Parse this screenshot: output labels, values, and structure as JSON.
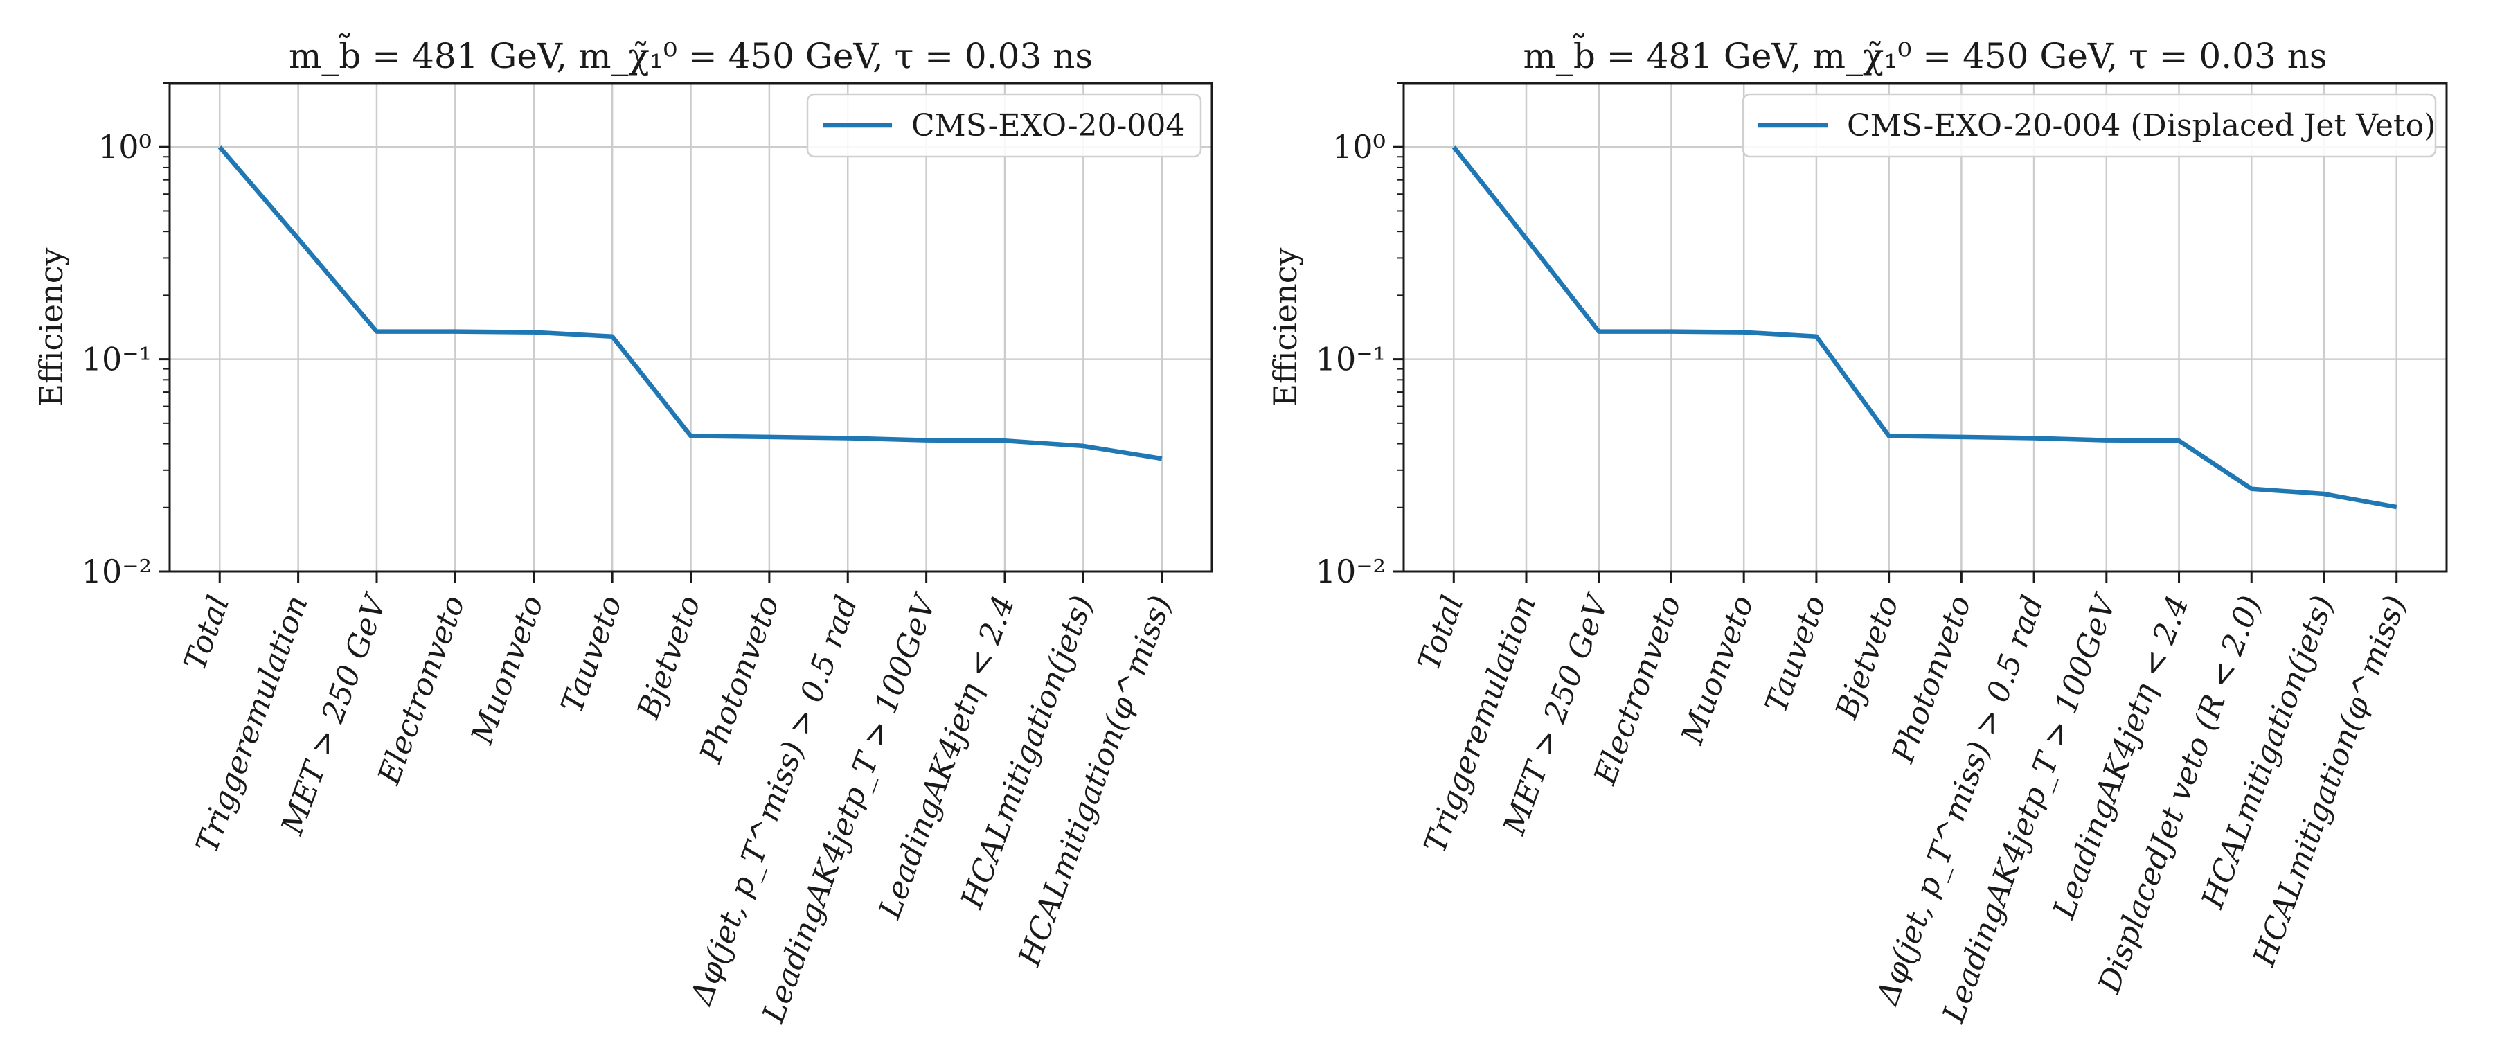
{
  "figure": {
    "panels": [
      {
        "title": "m_b̃ = 481 GeV, m_χ̃₁⁰ = 450 GeV, τ = 0.03 ns",
        "ylabel": "Efficiency",
        "legend": "CMS-EXO-20-004",
        "ytick_labels": [
          "10⁻²",
          "10⁻¹",
          "10⁰"
        ]
      },
      {
        "title": "m_b̃ = 481 GeV, m_χ̃₁⁰ = 450 GeV, τ = 0.03 ns",
        "ylabel": "Efficiency",
        "legend": "CMS-EXO-20-004 (Displaced Jet Veto)",
        "ytick_labels": [
          "10⁻²",
          "10⁻¹",
          "10⁰"
        ]
      }
    ]
  },
  "chart_data": [
    {
      "type": "line",
      "title": "m_b̃ = 481 GeV, m_χ̃₁⁰ = 450 GeV, τ = 0.03 ns",
      "xlabel": "",
      "ylabel": "Efficiency",
      "yscale": "log",
      "ylim": [
        0.01,
        2.0
      ],
      "grid": true,
      "legend_position": "top-right",
      "line_color": "#1f77b4",
      "categories": [
        "Total",
        "Triggeremulation",
        "MET > 250 GeV",
        "Electronveto",
        "Muonveto",
        "Tauveto",
        "Bjetveto",
        "Photonveto",
        "Δφ(jet, p_T^miss) > 0.5 rad",
        "LeadingAK4jetp_T > 100GeV",
        "LeadingAK4jetη < 2.4",
        "HCALmitigation(jets)",
        "HCALmitigation(φ^miss)"
      ],
      "series": [
        {
          "name": "CMS-EXO-20-004",
          "values": [
            1.0,
            0.37,
            0.135,
            0.135,
            0.134,
            0.128,
            0.0435,
            0.043,
            0.0425,
            0.0415,
            0.0413,
            0.039,
            0.034
          ]
        }
      ]
    },
    {
      "type": "line",
      "title": "m_b̃ = 481 GeV, m_χ̃₁⁰ = 450 GeV, τ = 0.03 ns",
      "xlabel": "",
      "ylabel": "Efficiency",
      "yscale": "log",
      "ylim": [
        0.01,
        2.0
      ],
      "grid": true,
      "legend_position": "top-right",
      "line_color": "#1f77b4",
      "categories": [
        "Total",
        "Triggeremulation",
        "MET > 250 GeV",
        "Electronveto",
        "Muonveto",
        "Tauveto",
        "Bjetveto",
        "Photonveto",
        "Δφ(jet, p_T^miss) > 0.5 rad",
        "LeadingAK4jetp_T > 100GeV",
        "LeadingAK4jetη < 2.4",
        "DisplacedJet veto (R < 2.0)",
        "HCALmitigation(jets)",
        "HCALmitigation(φ^miss)"
      ],
      "series": [
        {
          "name": "CMS-EXO-20-004 (Displaced Jet Veto)",
          "values": [
            1.0,
            0.37,
            0.135,
            0.135,
            0.134,
            0.128,
            0.0435,
            0.043,
            0.0425,
            0.0415,
            0.0413,
            0.0245,
            0.0232,
            0.0201
          ]
        }
      ]
    }
  ]
}
